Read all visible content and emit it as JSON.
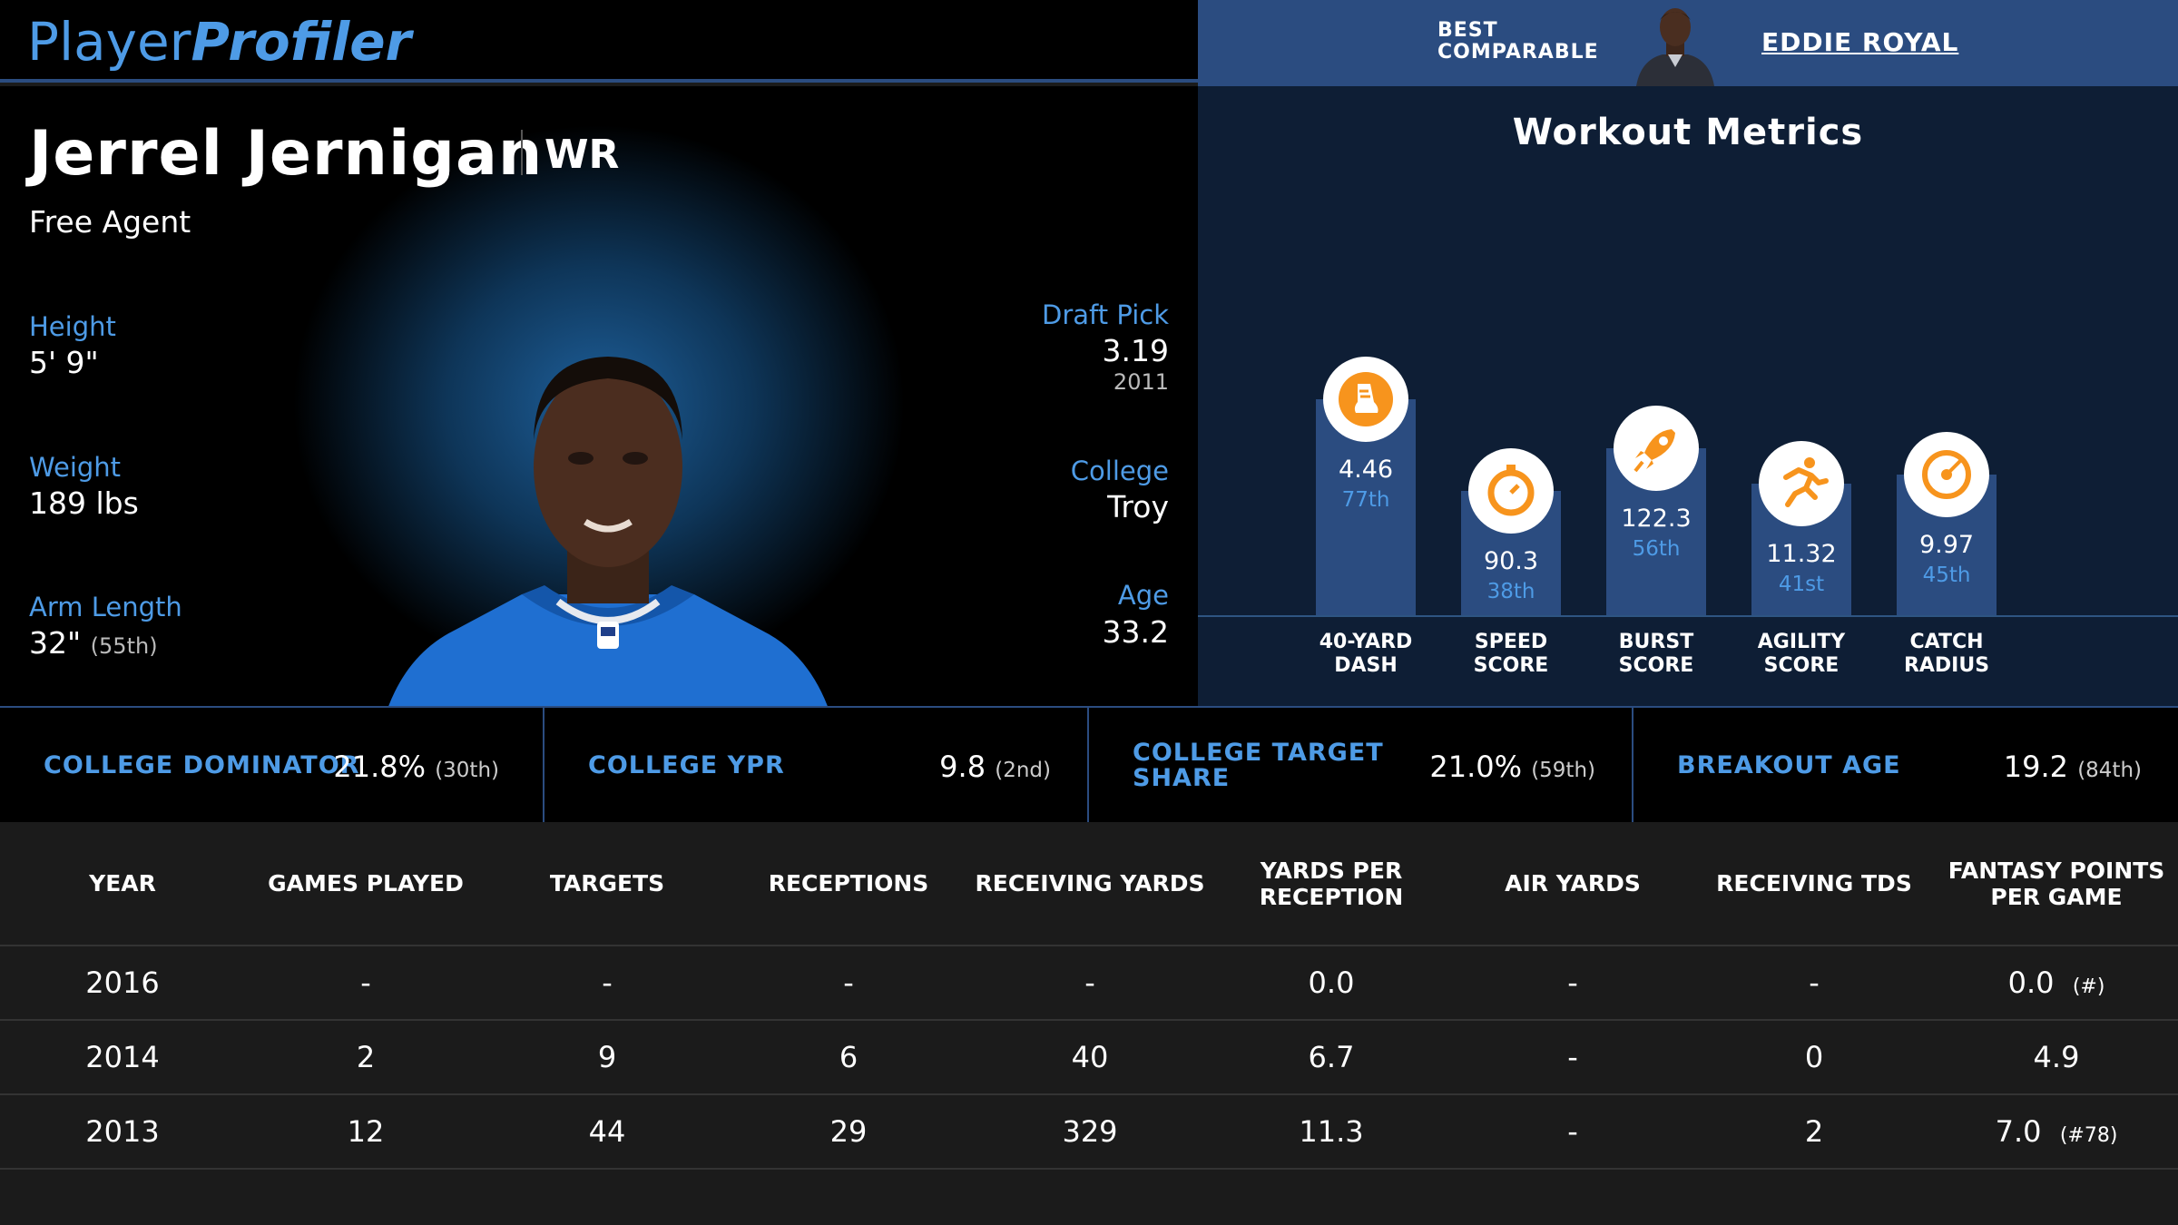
{
  "brand": {
    "part1": "Player",
    "part2": "Profiler"
  },
  "comparable": {
    "label_line1": "BEST",
    "label_line2": "COMPARABLE",
    "name": "EDDIE ROYAL"
  },
  "player": {
    "name": "Jerrel Jernigan",
    "position": "WR",
    "team": "Free Agent",
    "height_label": "Height",
    "height": "5' 9\"",
    "weight_label": "Weight",
    "weight": "189 lbs",
    "arm_label": "Arm Length",
    "arm": "32\"",
    "arm_rank": "(55th)",
    "draft_label": "Draft Pick",
    "draft": "3.19",
    "draft_year": "2011",
    "college_label": "College",
    "college": "Troy",
    "age_label": "Age",
    "age": "33.2"
  },
  "workout": {
    "title": "Workout Metrics",
    "metrics": [
      {
        "line1": "40-YARD",
        "line2": "DASH",
        "value": "4.46",
        "pct": "77th",
        "pct_num": 77,
        "icon": "shoe-icon"
      },
      {
        "line1": "SPEED",
        "line2": "SCORE",
        "value": "90.3",
        "pct": "38th",
        "pct_num": 38,
        "icon": "stopwatch-icon"
      },
      {
        "line1": "BURST",
        "line2": "SCORE",
        "value": "122.3",
        "pct": "56th",
        "pct_num": 56,
        "icon": "rocket-icon"
      },
      {
        "line1": "AGILITY",
        "line2": "SCORE",
        "value": "11.32",
        "pct": "41st",
        "pct_num": 41,
        "icon": "runner-icon"
      },
      {
        "line1": "CATCH",
        "line2": "RADIUS",
        "value": "9.97",
        "pct": "45th",
        "pct_num": 45,
        "icon": "target-icon"
      }
    ]
  },
  "stats": [
    {
      "label": "COLLEGE DOMINATOR",
      "value": "21.8%",
      "rank": "(30th)"
    },
    {
      "label": "COLLEGE YPR",
      "value": "9.8",
      "rank": "(2nd)"
    },
    {
      "label": "COLLEGE TARGET SHARE",
      "value": "21.0%",
      "rank": "(59th)"
    },
    {
      "label": "BREAKOUT AGE",
      "value": "19.2",
      "rank": "(84th)"
    }
  ],
  "table": {
    "headers": [
      "YEAR",
      "GAMES PLAYED",
      "TARGETS",
      "RECEPTIONS",
      "RECEIVING YARDS",
      "YARDS PER RECEPTION",
      "AIR YARDS",
      "RECEIVING TDS",
      "FANTASY POINTS PER GAME"
    ],
    "rows": [
      [
        "2016",
        "-",
        "-",
        "-",
        "-",
        "0.0",
        "-",
        "-",
        "0.0",
        "(#)"
      ],
      [
        "2014",
        "2",
        "9",
        "6",
        "40",
        "6.7",
        "-",
        "0",
        "4.9",
        ""
      ],
      [
        "2013",
        "12",
        "44",
        "29",
        "329",
        "11.3",
        "-",
        "2",
        "7.0",
        "(#78)"
      ]
    ]
  },
  "colors": {
    "accent": "#4e9be6",
    "navy": "#2b4c80",
    "orange": "#f7941d"
  }
}
